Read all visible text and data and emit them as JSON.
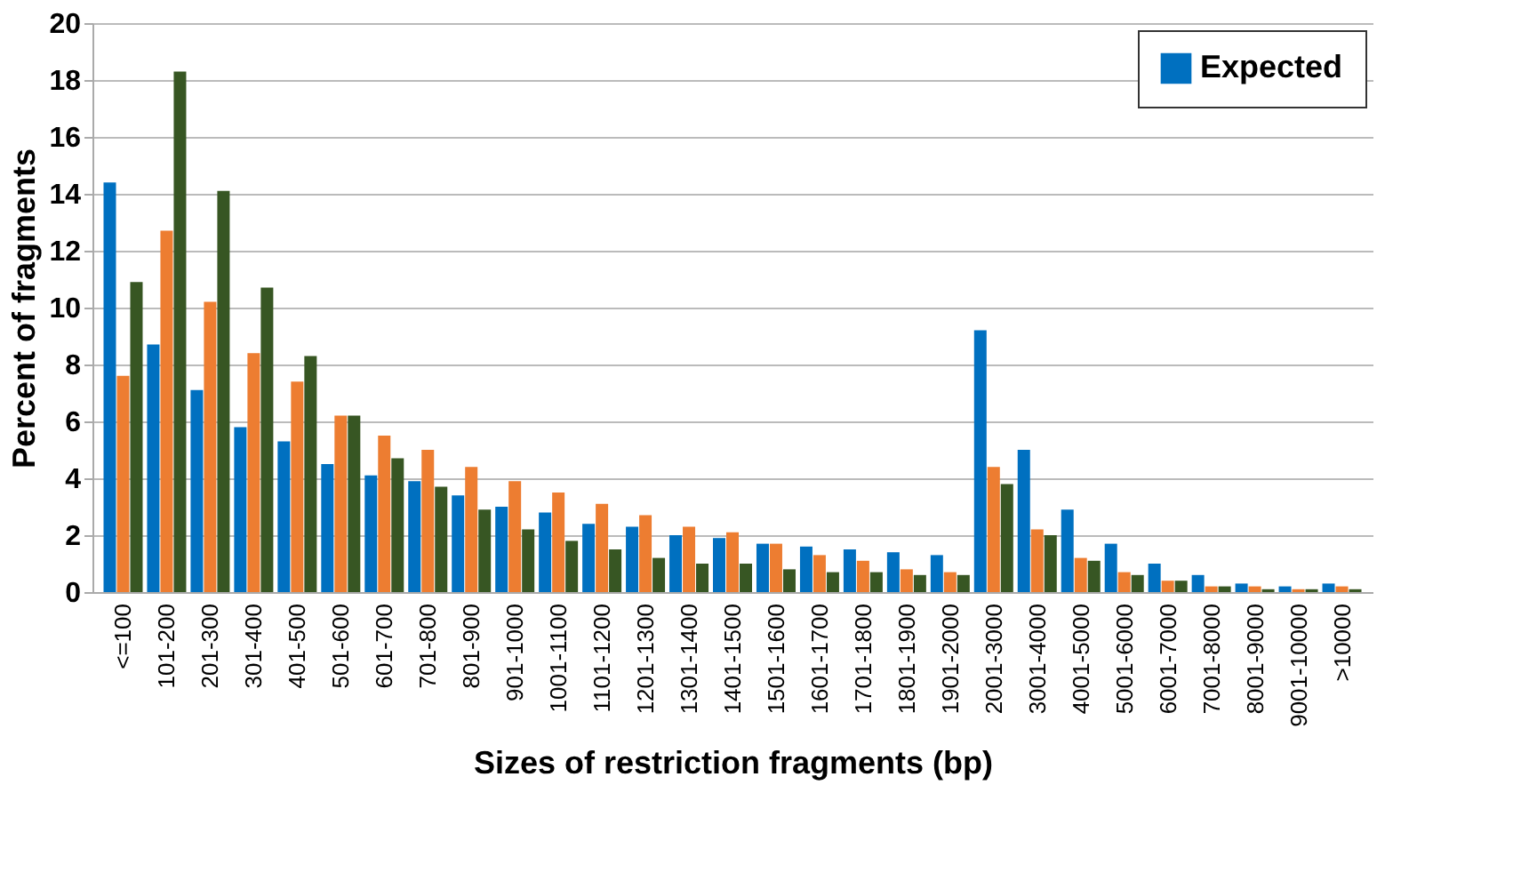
{
  "chart_data": {
    "type": "bar",
    "xlabel": "Sizes of restriction fragments (bp)",
    "ylabel": "Percent of fragments",
    "categories": [
      "<=100",
      "101-200",
      "201-300",
      "301-400",
      "401-500",
      "501-600",
      "601-700",
      "701-800",
      "801-900",
      "901-1000",
      "1001-1100",
      "1101-1200",
      "1201-1300",
      "1301-1400",
      "1401-1500",
      "1501-1600",
      "1601-1700",
      "1701-1800",
      "1801-1900",
      "1901-2000",
      "2001-3000",
      "3001-4000",
      "4001-5000",
      "5001-6000",
      "6001-7000",
      "7001-8000",
      "8001-9000",
      "9001-10000",
      ">10000"
    ],
    "series": [
      {
        "name": "Expected",
        "color": "#0070c0",
        "values": [
          14.4,
          8.7,
          7.1,
          5.8,
          5.3,
          4.5,
          4.1,
          3.9,
          3.4,
          3.0,
          2.8,
          2.4,
          2.3,
          2.0,
          1.9,
          1.7,
          1.6,
          1.5,
          1.4,
          1.3,
          9.2,
          5.0,
          2.9,
          1.7,
          1.0,
          0.6,
          0.3,
          0.2,
          0.3
        ]
      },
      {
        "color": "#ed7d31",
        "values": [
          7.6,
          12.7,
          10.2,
          8.4,
          7.4,
          6.2,
          5.5,
          5.0,
          4.4,
          3.9,
          3.5,
          3.1,
          2.7,
          2.3,
          2.1,
          1.7,
          1.3,
          1.1,
          0.8,
          0.7,
          4.4,
          2.2,
          1.2,
          0.7,
          0.4,
          0.2,
          0.2,
          0.1,
          0.2
        ]
      },
      {
        "color": "#375623",
        "values": [
          10.9,
          18.3,
          14.1,
          10.7,
          8.3,
          6.2,
          4.7,
          3.7,
          2.9,
          2.2,
          1.8,
          1.5,
          1.2,
          1.0,
          1.0,
          0.8,
          0.7,
          0.7,
          0.6,
          0.6,
          3.8,
          2.0,
          1.1,
          0.6,
          0.4,
          0.2,
          0.1,
          0.1,
          0.1
        ]
      }
    ],
    "ylim": [
      0,
      20
    ],
    "yticks": [
      0,
      2,
      4,
      6,
      8,
      10,
      12,
      14,
      16,
      18,
      20
    ],
    "grid": "y",
    "legend": "top right"
  }
}
